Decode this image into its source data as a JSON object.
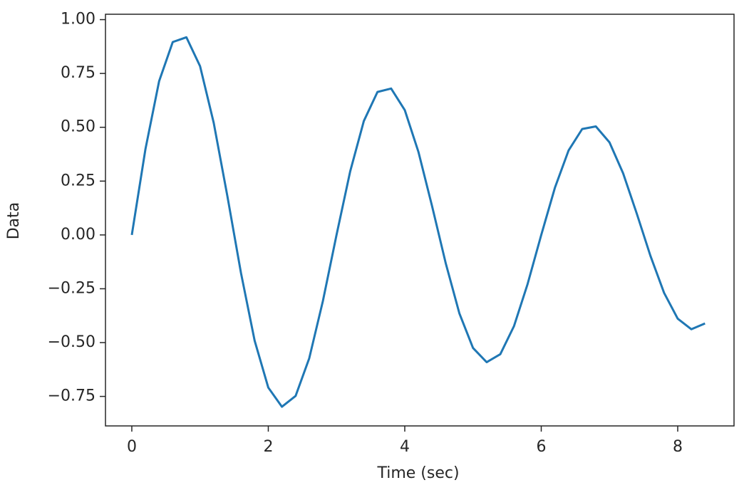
{
  "chart_data": {
    "type": "line",
    "xlabel": "Time (sec)",
    "ylabel": "Data",
    "x": [
      0,
      0.2,
      0.4,
      0.6,
      0.8,
      1.0,
      1.2,
      1.4,
      1.6,
      1.8,
      2.0,
      2.2,
      2.4,
      2.6,
      2.8,
      3.0,
      3.2,
      3.4,
      3.6,
      3.8,
      4.0,
      4.2,
      4.4,
      4.6,
      4.8,
      5.0,
      5.2,
      5.4,
      5.6,
      5.8,
      6.0,
      6.2,
      6.4,
      6.6,
      6.8,
      7.0,
      7.2,
      7.4,
      7.6,
      7.8,
      8.0,
      8.2,
      8.4
    ],
    "series": [
      {
        "color": "#1f77b4",
        "values": [
          0,
          0.399,
          0.714,
          0.896,
          0.918,
          0.784,
          0.521,
          0.181,
          -0.177,
          -0.491,
          -0.709,
          -0.798,
          -0.748,
          -0.573,
          -0.307,
          0,
          0.295,
          0.529,
          0.664,
          0.68,
          0.58,
          0.386,
          0.134,
          -0.131,
          -0.364,
          -0.525,
          -0.591,
          -0.554,
          -0.424,
          -0.228,
          0,
          0.219,
          0.392,
          0.492,
          0.504,
          0.43,
          0.286,
          0.099,
          -0.097,
          -0.269,
          -0.389,
          -0.438,
          -0.411
        ]
      }
    ],
    "xlim": [
      -0.386,
      8.825
    ],
    "ylim": [
      -0.887,
      1.025
    ],
    "xticks": [
      0,
      2,
      4,
      6,
      8
    ],
    "yticks": [
      {
        "value": -0.75,
        "label": "−0.75"
      },
      {
        "value": -0.5,
        "label": "−0.50"
      },
      {
        "value": -0.25,
        "label": "−0.25"
      },
      {
        "value": 0,
        "label": "0.00"
      },
      {
        "value": 0.25,
        "label": "0.25"
      },
      {
        "value": 0.5,
        "label": "0.50"
      },
      {
        "value": 0.75,
        "label": "0.75"
      },
      {
        "value": 1,
        "label": "1.00"
      }
    ],
    "grid": false
  }
}
